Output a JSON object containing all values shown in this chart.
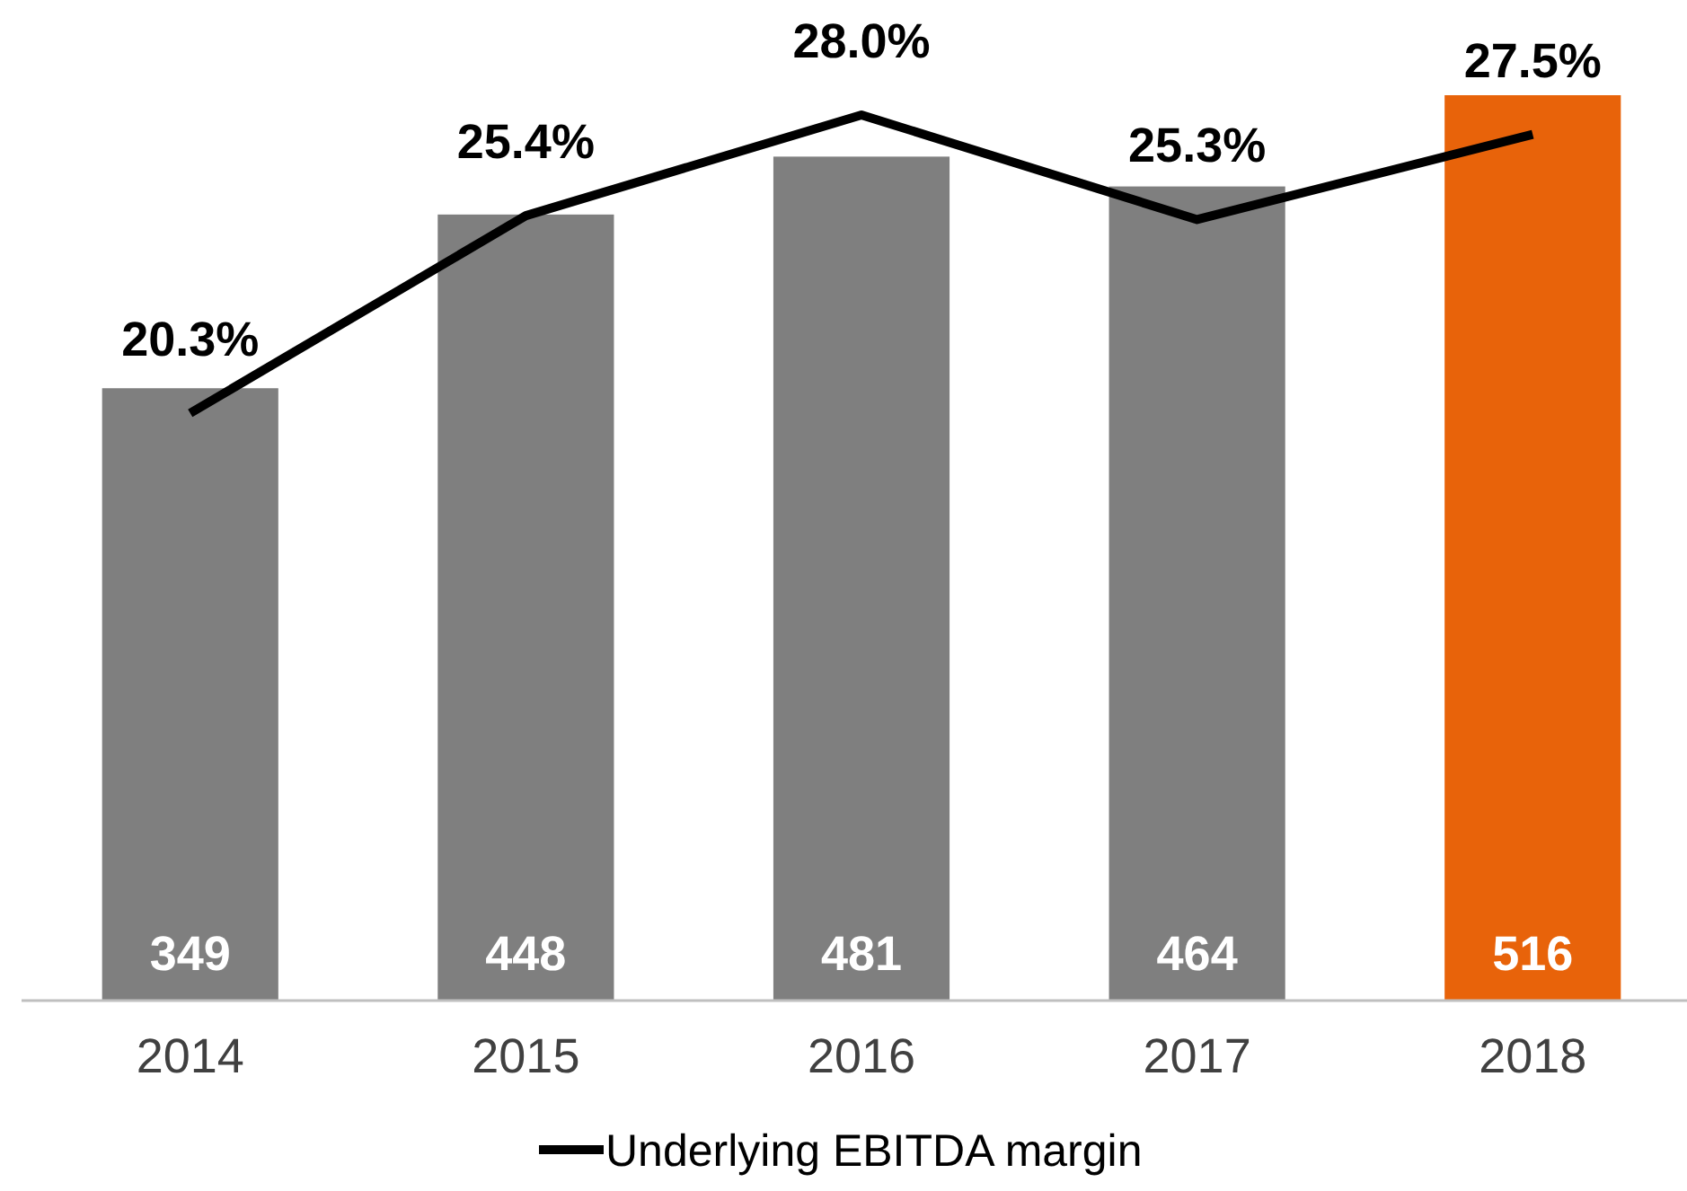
{
  "chart_data": {
    "type": "bar",
    "categories": [
      "2014",
      "2015",
      "2016",
      "2017",
      "2018"
    ],
    "tick_labels": "x",
    "legend": "bottom",
    "series": [
      {
        "colors": [
          "#7f7f7f",
          "#7f7f7f",
          "#7f7f7f",
          "#7f7f7f",
          "#e8630a"
        ],
        "values": [
          349,
          448,
          481,
          464,
          516
        ],
        "value_labels": [
          "349",
          "448",
          "481",
          "464",
          "516"
        ]
      },
      {
        "type": "line",
        "axis": "y2",
        "name": "Underlying EBITDA margin",
        "color": "#000000",
        "values": [
          20.3,
          25.4,
          28.0,
          25.3,
          27.5
        ],
        "value_labels": [
          "20.3%",
          "25.4%",
          "28.0%",
          "25.3%",
          "27.5%"
        ],
        "marker": "none"
      }
    ]
  }
}
